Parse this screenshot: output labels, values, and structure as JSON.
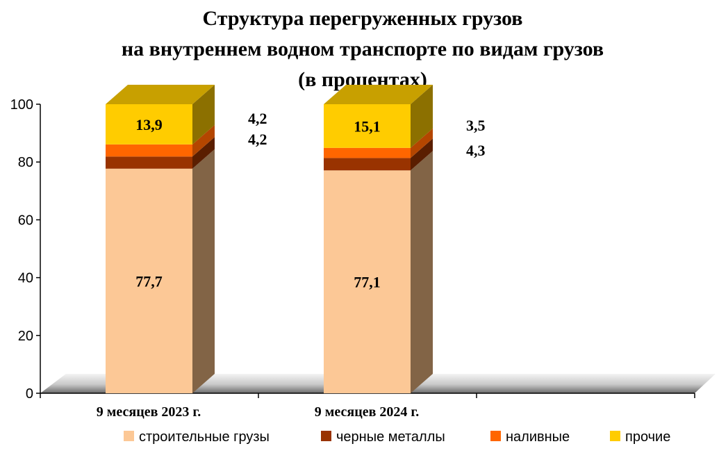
{
  "chart_data": {
    "type": "bar",
    "stacked": true,
    "title_lines": [
      "Структура перегруженных грузов",
      "на внутреннем водном транспорте по видам грузов",
      "(в процентах)"
    ],
    "categories": [
      "9 месяцев 2023 г.",
      "9 месяцев 2024 г."
    ],
    "series": [
      {
        "name": "строительные грузы",
        "values": [
          77.7,
          77.1
        ],
        "labels": [
          "77,7",
          "77,1"
        ],
        "color": "#FCC896",
        "side_color": "#826446"
      },
      {
        "name": "черные металлы",
        "values": [
          4.2,
          4.3
        ],
        "labels": [
          "4,2",
          "4,3"
        ],
        "color": "#993300",
        "side_color": "#5A1E00"
      },
      {
        "name": "наливные",
        "values": [
          4.2,
          3.5
        ],
        "labels": [
          "4,2",
          "3,5"
        ],
        "color": "#FF6600",
        "side_color": "#B44600"
      },
      {
        "name": "прочие",
        "values": [
          13.9,
          15.1
        ],
        "labels": [
          "13,9",
          "15,1"
        ],
        "color": "#FFCC00",
        "side_color": "#8C7000",
        "top_color": "#C8A000"
      }
    ],
    "yticks": [
      "0",
      "20",
      "40",
      "60",
      "80",
      "100"
    ],
    "ylim": [
      0,
      100
    ],
    "legend_position": "bottom",
    "three_d": true
  }
}
